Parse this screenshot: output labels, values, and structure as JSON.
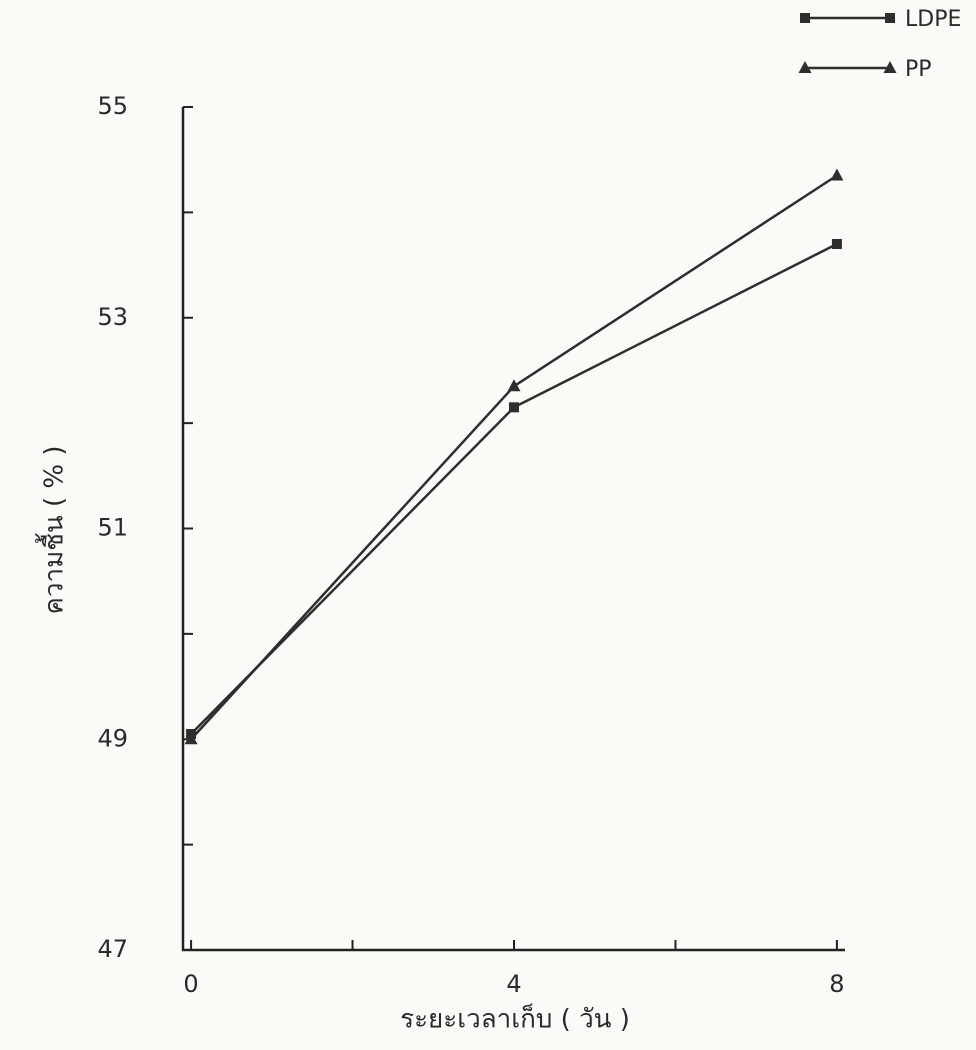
{
  "chart_data": {
    "type": "line",
    "x_label": "ระยะเวลาเก็บ ( วัน )",
    "y_label": "ความชื้น ( % )",
    "x": [
      0,
      4,
      8
    ],
    "series": [
      {
        "name": "LDPE",
        "color": "#2e2e2e",
        "marker": "square",
        "values": [
          49.05,
          52.15,
          53.7
        ]
      },
      {
        "name": "PP",
        "color": "#2e2e2e",
        "marker": "triangle",
        "values": [
          49.0,
          52.35,
          54.35
        ]
      }
    ],
    "xlim": [
      -0.1,
      8.1
    ],
    "xticks": [
      0,
      4,
      8
    ],
    "xminor_ticks": [
      2,
      6
    ],
    "ylim": [
      47,
      55
    ],
    "yticks": [
      47,
      49,
      51,
      53,
      55
    ],
    "yminor_ticks": [
      48,
      50,
      52,
      54
    ],
    "grid": false,
    "legend": "top-right"
  }
}
